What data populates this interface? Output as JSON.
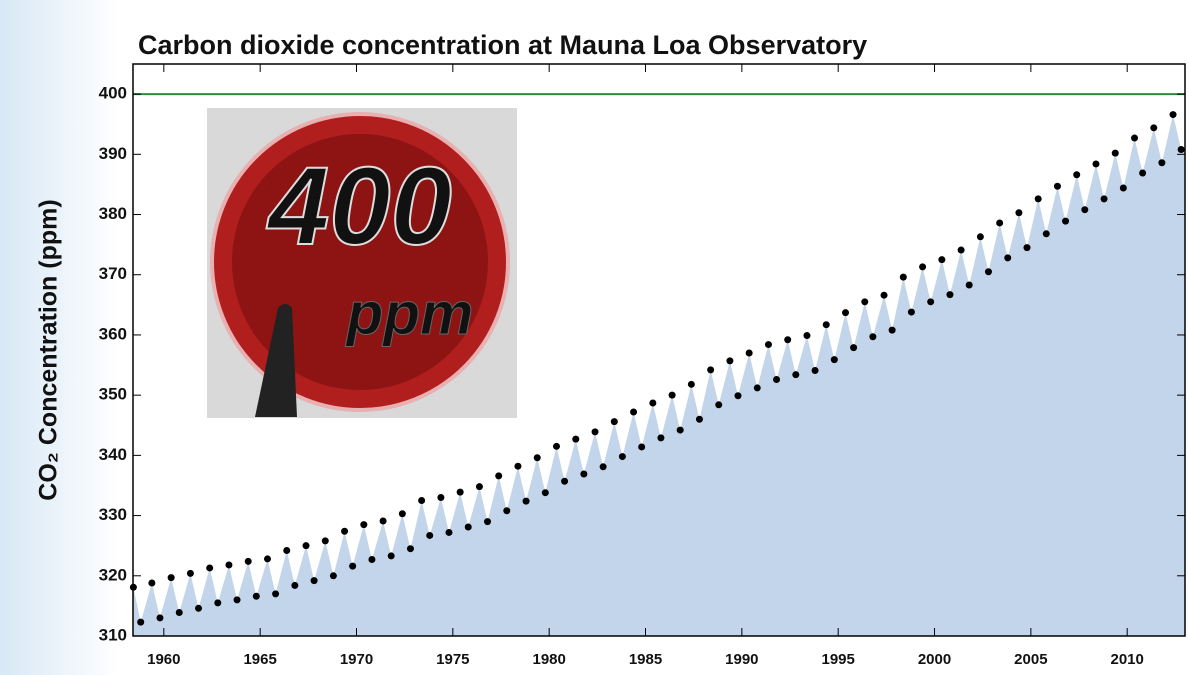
{
  "chart_data": {
    "type": "scatter",
    "title": "Carbon dioxide concentration at Mauna Loa Observatory",
    "y_label": "CO₂ Concentration (ppm)",
    "badge": {
      "number": "400",
      "unit": "ppm"
    },
    "x": [
      1958.42,
      1958.8,
      1959.38,
      1959.8,
      1960.38,
      1960.8,
      1961.38,
      1961.8,
      1962.38,
      1962.8,
      1963.38,
      1963.8,
      1964.38,
      1964.8,
      1965.38,
      1965.8,
      1966.38,
      1966.8,
      1967.38,
      1967.8,
      1968.38,
      1968.8,
      1969.38,
      1969.8,
      1970.38,
      1970.8,
      1971.38,
      1971.8,
      1972.38,
      1972.8,
      1973.38,
      1973.8,
      1974.38,
      1974.8,
      1975.38,
      1975.8,
      1976.38,
      1976.8,
      1977.38,
      1977.8,
      1978.38,
      1978.8,
      1979.38,
      1979.8,
      1980.38,
      1980.8,
      1981.38,
      1981.8,
      1982.38,
      1982.8,
      1983.38,
      1983.8,
      1984.38,
      1984.8,
      1985.38,
      1985.8,
      1986.38,
      1986.8,
      1987.38,
      1987.8,
      1988.38,
      1988.8,
      1989.38,
      1989.8,
      1990.38,
      1990.8,
      1991.38,
      1991.8,
      1992.38,
      1992.8,
      1993.38,
      1993.8,
      1994.38,
      1994.8,
      1995.38,
      1995.8,
      1996.38,
      1996.8,
      1997.38,
      1997.8,
      1998.38,
      1998.8,
      1999.38,
      1999.8,
      2000.38,
      2000.8,
      2001.38,
      2001.8,
      2002.38,
      2002.8,
      2003.38,
      2003.8,
      2004.38,
      2004.8,
      2005.38,
      2005.8,
      2006.38,
      2006.8,
      2007.38,
      2007.8,
      2008.38,
      2008.8,
      2009.38,
      2009.8,
      2010.38,
      2010.8,
      2011.38,
      2011.8,
      2012.38,
      2012.8
    ],
    "values": [
      318.1,
      312.3,
      318.8,
      313.0,
      319.7,
      313.9,
      320.4,
      314.6,
      321.3,
      315.5,
      321.8,
      316.0,
      322.4,
      316.6,
      322.8,
      317.0,
      324.2,
      318.4,
      325.0,
      319.2,
      325.8,
      320.0,
      327.4,
      321.6,
      328.5,
      322.7,
      329.1,
      323.3,
      330.3,
      324.5,
      332.5,
      326.7,
      333.0,
      327.2,
      333.9,
      328.1,
      334.8,
      329.0,
      336.6,
      330.8,
      338.2,
      332.4,
      339.6,
      333.8,
      341.5,
      335.7,
      342.7,
      336.9,
      343.9,
      338.1,
      345.6,
      339.8,
      347.2,
      341.4,
      348.7,
      342.9,
      350.0,
      344.2,
      351.8,
      346.0,
      354.2,
      348.4,
      355.7,
      349.9,
      357.0,
      351.2,
      358.4,
      352.6,
      359.2,
      353.4,
      359.9,
      354.1,
      361.7,
      355.9,
      363.7,
      357.9,
      365.5,
      359.7,
      366.6,
      360.8,
      369.6,
      363.8,
      371.3,
      365.5,
      372.5,
      366.7,
      374.1,
      368.3,
      376.3,
      370.5,
      378.6,
      372.8,
      380.3,
      374.5,
      382.6,
      376.8,
      384.7,
      378.9,
      386.6,
      380.8,
      388.4,
      382.6,
      390.2,
      384.4,
      392.7,
      386.9,
      394.4,
      388.6,
      396.6,
      390.8
    ],
    "color": "#000000",
    "area_color": "#c3d5ea",
    "hline": {
      "value": 400,
      "color": "#2e8b3e"
    },
    "xlim": [
      1958.4,
      2013.0
    ],
    "xticks": [
      1960,
      1965,
      1970,
      1975,
      1980,
      1985,
      1990,
      1995,
      2000,
      2005,
      2010
    ],
    "ylim": [
      310,
      405
    ],
    "yticks": [
      310,
      320,
      330,
      340,
      350,
      360,
      370,
      380,
      390,
      400
    ]
  }
}
